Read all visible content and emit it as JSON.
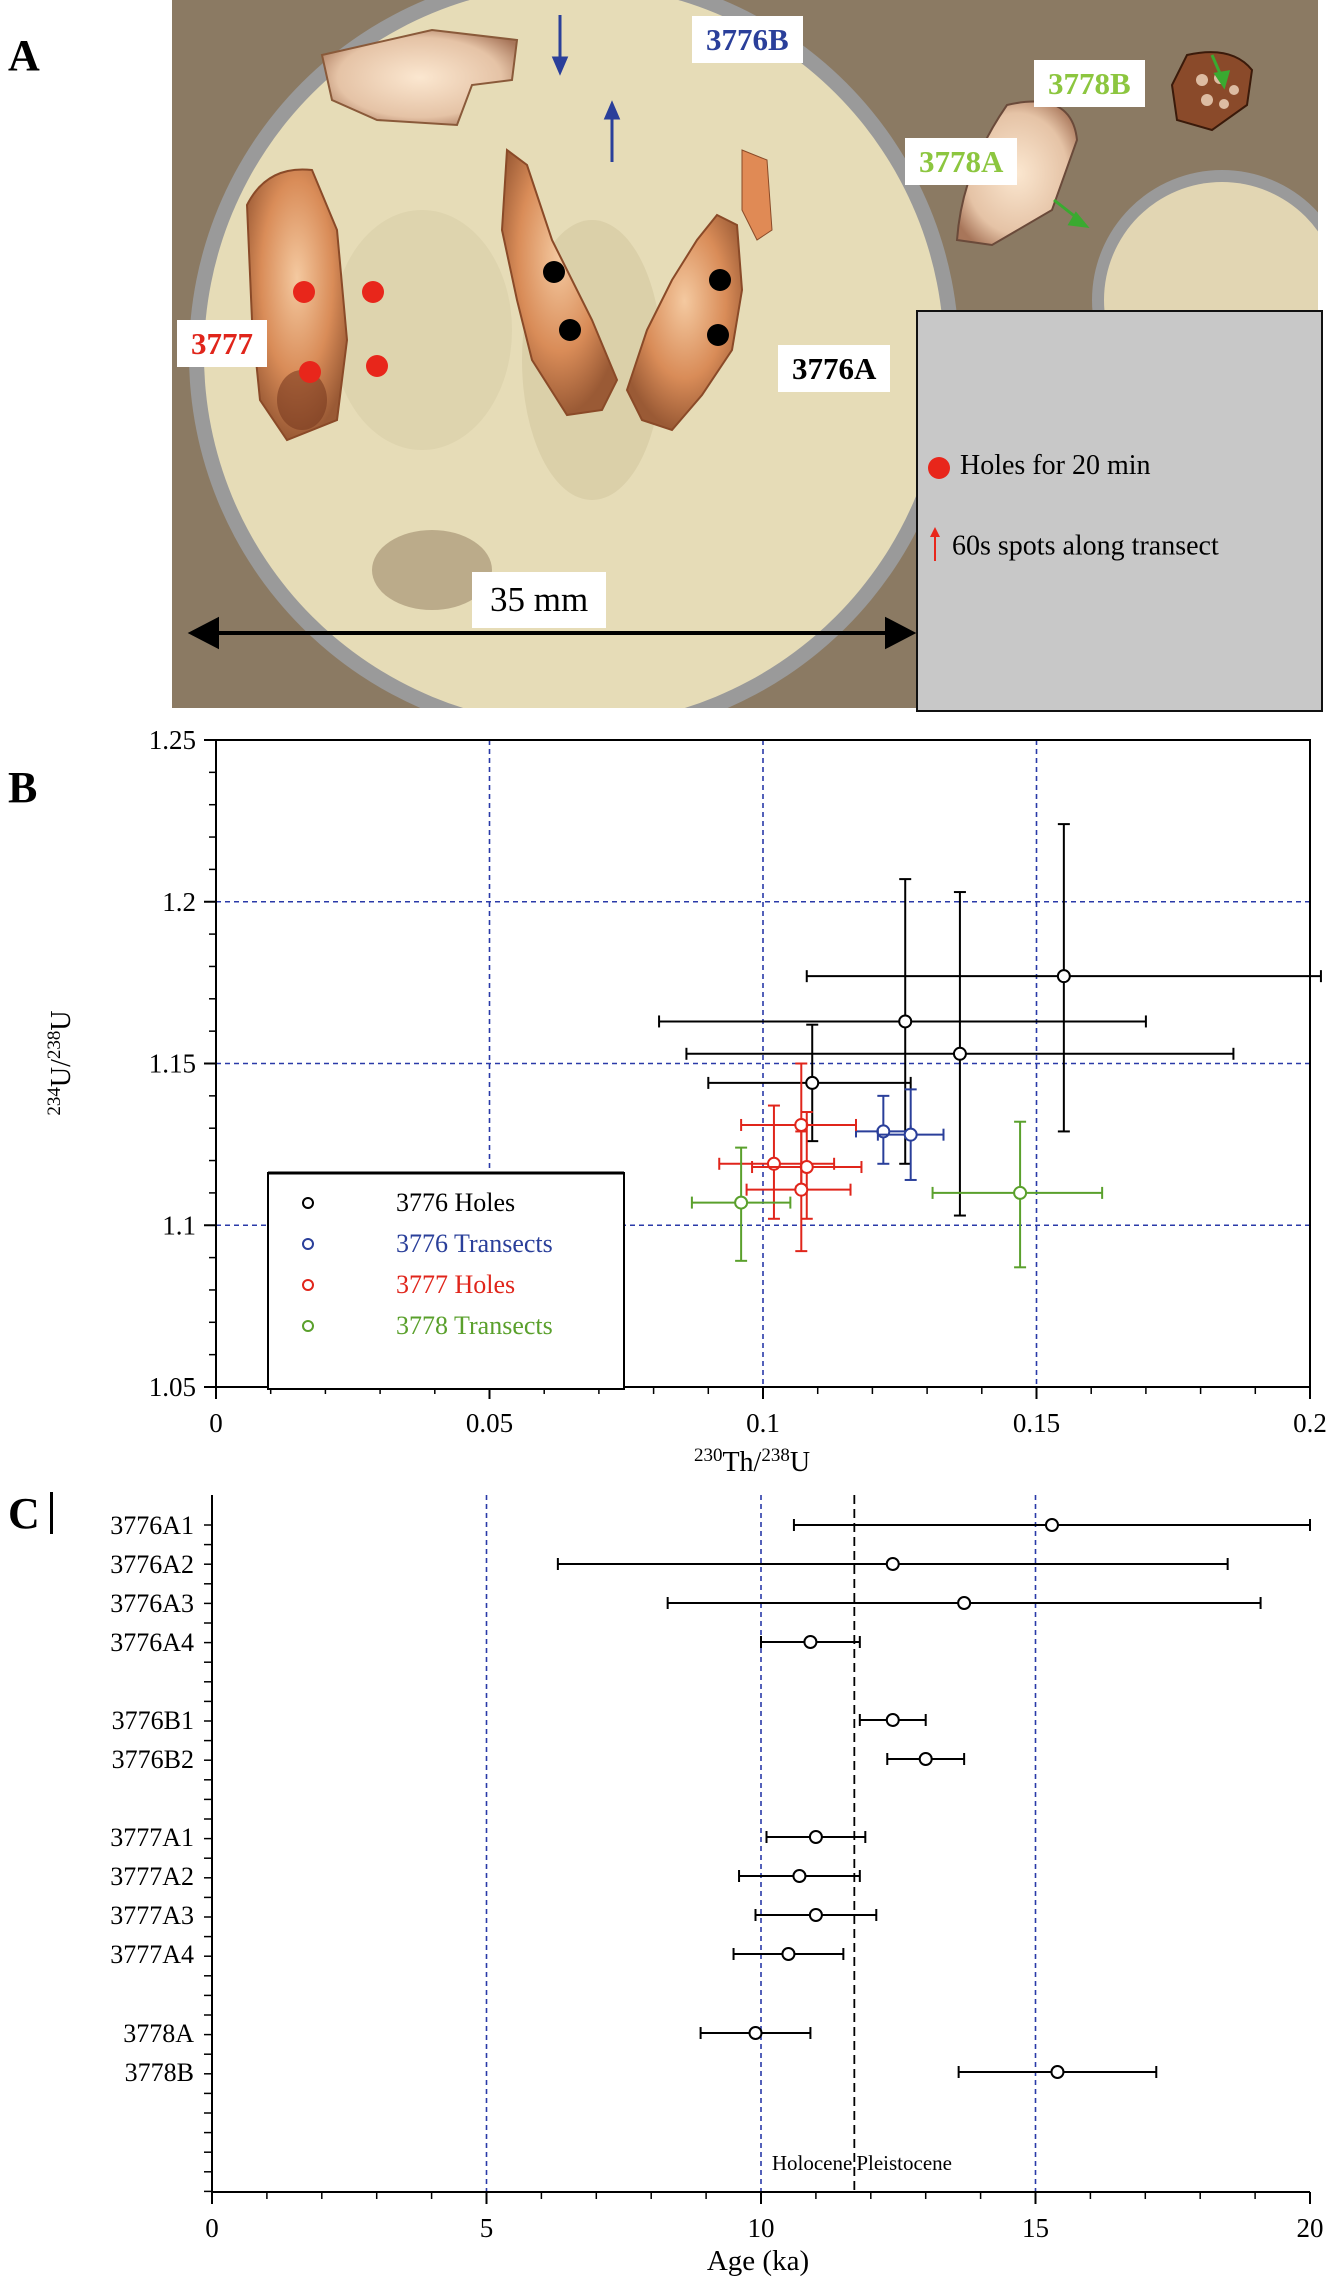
{
  "panels": {
    "a": "A",
    "b": "B",
    "c": "C"
  },
  "panel_a": {
    "sample_labels": {
      "s3776b": "3776B",
      "s3777": "3777",
      "s3776a": "3776A",
      "s3778a": "3778A",
      "s3778b": "3778B"
    },
    "label_colors": {
      "s3776b": "#2a3f9a",
      "s3777": "#e0251b",
      "s3776a": "#000000",
      "s3778a": "#8cc63f",
      "s3778b": "#8cc63f"
    },
    "scale_label": "35 mm",
    "legend": {
      "holes": "Holes for 20 min",
      "spots": "60s spots along transect"
    }
  },
  "chart_data": [
    {
      "type": "scatter",
      "xlabel": "230Th/238U",
      "ylabel": "234U/238U",
      "xlim": [
        0,
        0.2
      ],
      "ylim": [
        1.05,
        1.25
      ],
      "x_ticks": [
        "0",
        "0.05",
        "0.1",
        "0.15",
        "0.2"
      ],
      "y_ticks": [
        "1.05",
        "1.1",
        "1.15",
        "1.2",
        "1.25"
      ],
      "grid": "dashed blue at x=0.05,0.10,0.15 and y=1.10,1.15,1.20",
      "legend_position": "bottom-left",
      "series": [
        {
          "name": "3776 Holes",
          "color": "#000000",
          "points": [
            {
              "x": 0.155,
              "y": 1.177,
              "xerr": [
                0.108,
                0.202
              ],
              "yerr": [
                1.129,
                1.224
              ]
            },
            {
              "x": 0.126,
              "y": 1.163,
              "xerr": [
                0.081,
                0.17
              ],
              "yerr": [
                1.119,
                1.207
              ]
            },
            {
              "x": 0.136,
              "y": 1.153,
              "xerr": [
                0.086,
                0.186
              ],
              "yerr": [
                1.103,
                1.203
              ]
            },
            {
              "x": 0.109,
              "y": 1.144,
              "xerr": [
                0.09,
                0.127
              ],
              "yerr": [
                1.126,
                1.162
              ]
            }
          ]
        },
        {
          "name": "3776 Transects",
          "color": "#2a3f9a",
          "points": [
            {
              "x": 0.122,
              "y": 1.129,
              "xerr": [
                0.117,
                0.127
              ],
              "yerr": [
                1.119,
                1.14
              ]
            },
            {
              "x": 0.127,
              "y": 1.128,
              "xerr": [
                0.121,
                0.133
              ],
              "yerr": [
                1.114,
                1.142
              ]
            }
          ]
        },
        {
          "name": "3777 Holes",
          "color": "#e0251b",
          "points": [
            {
              "x": 0.107,
              "y": 1.131,
              "xerr": [
                0.096,
                0.117
              ],
              "yerr": [
                1.112,
                1.15
              ]
            },
            {
              "x": 0.102,
              "y": 1.119,
              "xerr": [
                0.092,
                0.113
              ],
              "yerr": [
                1.102,
                1.137
              ]
            },
            {
              "x": 0.108,
              "y": 1.118,
              "xerr": [
                0.098,
                0.118
              ],
              "yerr": [
                1.102,
                1.135
              ]
            },
            {
              "x": 0.107,
              "y": 1.111,
              "xerr": [
                0.097,
                0.116
              ],
              "yerr": [
                1.092,
                1.129
              ]
            }
          ]
        },
        {
          "name": "3778 Transects",
          "color": "#5aa02c",
          "points": [
            {
              "x": 0.096,
              "y": 1.107,
              "xerr": [
                0.087,
                0.105
              ],
              "yerr": [
                1.089,
                1.124
              ]
            },
            {
              "x": 0.147,
              "y": 1.11,
              "xerr": [
                0.131,
                0.162
              ],
              "yerr": [
                1.087,
                1.132
              ]
            }
          ]
        }
      ]
    },
    {
      "type": "scatter",
      "xlabel": "Age (ka)",
      "xlim": [
        0,
        20
      ],
      "x_ticks": [
        "0",
        "5",
        "10",
        "15",
        "20"
      ],
      "grid": "dashed blue at x=5,10,15",
      "boundary": {
        "x": 11.7,
        "left_label": "Holocene",
        "right_label": "Pleistocene"
      },
      "points": [
        {
          "label": "3776A1",
          "age": 15.3,
          "lo": 10.6,
          "hi": 20.0
        },
        {
          "label": "3776A2",
          "age": 12.4,
          "lo": 6.3,
          "hi": 18.5
        },
        {
          "label": "3776A3",
          "age": 13.7,
          "lo": 8.3,
          "hi": 19.1
        },
        {
          "label": "3776A4",
          "age": 10.9,
          "lo": 10.0,
          "hi": 11.8
        },
        {
          "label": "3776B1",
          "age": 12.4,
          "lo": 11.8,
          "hi": 13.0
        },
        {
          "label": "3776B2",
          "age": 13.0,
          "lo": 12.3,
          "hi": 13.7
        },
        {
          "label": "3777A1",
          "age": 11.0,
          "lo": 10.1,
          "hi": 11.9
        },
        {
          "label": "3777A2",
          "age": 10.7,
          "lo": 9.6,
          "hi": 11.8
        },
        {
          "label": "3777A3",
          "age": 11.0,
          "lo": 9.9,
          "hi": 12.1
        },
        {
          "label": "3777A4",
          "age": 10.5,
          "lo": 9.5,
          "hi": 11.5
        },
        {
          "label": "3778A",
          "age": 9.9,
          "lo": 8.9,
          "hi": 10.9
        },
        {
          "label": "3778B",
          "age": 15.4,
          "lo": 13.6,
          "hi": 17.2
        }
      ]
    }
  ]
}
